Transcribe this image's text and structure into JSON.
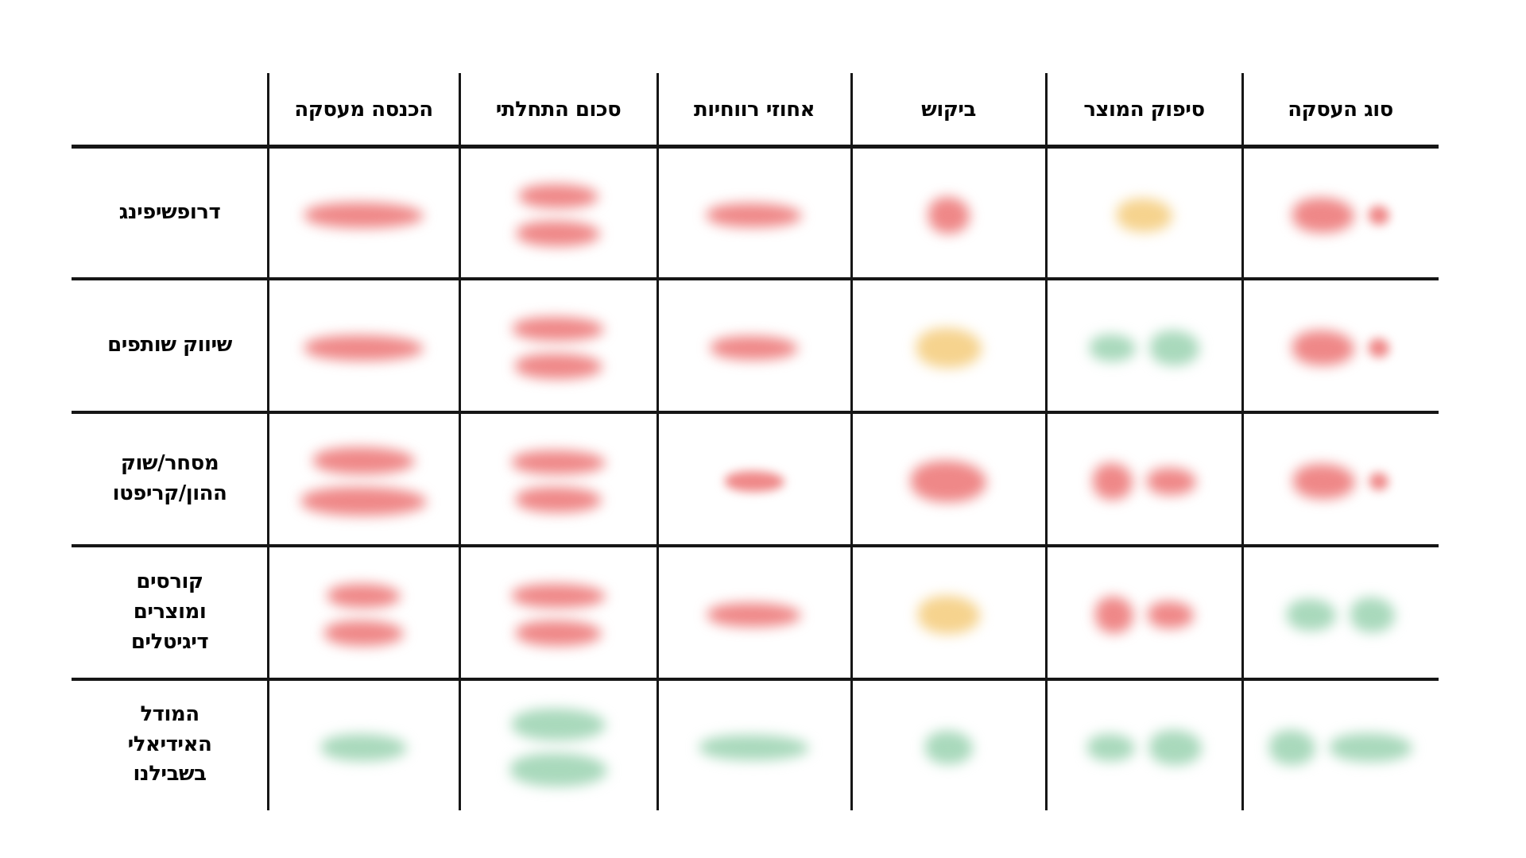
{
  "table": {
    "columns": [
      {
        "key": "income",
        "label": "הכנסה מעסקה"
      },
      {
        "key": "initial",
        "label": "סכום התחלתי"
      },
      {
        "key": "profit",
        "label": "אחוזי רווחיות"
      },
      {
        "key": "demand",
        "label": "ביקוש"
      },
      {
        "key": "fulfillment",
        "label": "סיפוק המוצר"
      },
      {
        "key": "type",
        "label": "סוג העסקה"
      }
    ],
    "rows": [
      {
        "key": "dropshipping",
        "label": "דרופשיפינג",
        "cells": [
          {
            "color": "red",
            "redacted": true,
            "lines": [
              [
                [
                  150,
                  32
                ]
              ]
            ]
          },
          {
            "color": "red",
            "redacted": true,
            "lines": [
              [
                [
                  100,
                  30
                ]
              ],
              [
                [
                  105,
                  32
                ]
              ]
            ]
          },
          {
            "color": "red",
            "redacted": true,
            "lines": [
              [
                [
                  120,
                  30
                ]
              ]
            ]
          },
          {
            "color": "red",
            "redacted": true,
            "lines": [
              [
                [
                  52,
                  46
                ]
              ]
            ]
          },
          {
            "color": "yellow",
            "redacted": true,
            "lines": [
              [
                [
                  70,
                  42
                ]
              ]
            ]
          },
          {
            "color": "red",
            "redacted": true,
            "lines": [
              [
                [
                  78,
                  44
                ],
                [
                  26,
                  24
                ]
              ]
            ]
          }
        ]
      },
      {
        "key": "affiliate",
        "label": "שיווק שותפים",
        "cells": [
          {
            "color": "red",
            "redacted": true,
            "lines": [
              [
                [
                  150,
                  32
                ]
              ]
            ]
          },
          {
            "color": "red",
            "redacted": true,
            "lines": [
              [
                [
                  115,
                  30
                ]
              ],
              [
                [
                  110,
                  32
                ]
              ]
            ]
          },
          {
            "color": "red",
            "redacted": true,
            "lines": [
              [
                [
                  110,
                  30
                ]
              ]
            ]
          },
          {
            "color": "yellow",
            "redacted": true,
            "lines": [
              [
                [
                  82,
                  50
                ]
              ]
            ]
          },
          {
            "color": "green",
            "redacted": true,
            "lines": [
              [
                [
                  58,
                  34
                ],
                [
                  62,
                  44
                ]
              ]
            ]
          },
          {
            "color": "red",
            "redacted": true,
            "lines": [
              [
                [
                  78,
                  44
                ],
                [
                  26,
                  24
                ]
              ]
            ]
          }
        ]
      },
      {
        "key": "trading-crypto",
        "label": "מסחר/שוק\nההון/קריפטו",
        "cells": [
          {
            "color": "red",
            "redacted": true,
            "lines": [
              [
                [
                  128,
                  34
                ]
              ],
              [
                [
                  158,
                  36
                ]
              ]
            ]
          },
          {
            "color": "red",
            "redacted": true,
            "lines": [
              [
                [
                  118,
                  30
                ]
              ],
              [
                [
                  108,
                  32
                ]
              ]
            ]
          },
          {
            "color": "red",
            "redacted": true,
            "lines": [
              [
                [
                  75,
                  26
                ]
              ]
            ]
          },
          {
            "color": "red",
            "redacted": true,
            "lines": [
              [
                [
                  95,
                  52
                ]
              ]
            ]
          },
          {
            "color": "red",
            "redacted": true,
            "lines": [
              [
                [
                  50,
                  46
                ],
                [
                  62,
                  34
                ]
              ]
            ]
          },
          {
            "color": "red",
            "redacted": true,
            "lines": [
              [
                [
                  78,
                  44
                ],
                [
                  24,
                  22
                ]
              ]
            ]
          }
        ]
      },
      {
        "key": "digital-products",
        "label": "קורסים\nומוצרים\nדיגיטלים",
        "cells": [
          {
            "color": "red",
            "redacted": true,
            "lines": [
              [
                [
                  92,
                  30
                ]
              ],
              [
                [
                  100,
                  32
                ]
              ]
            ]
          },
          {
            "color": "red",
            "redacted": true,
            "lines": [
              [
                [
                  118,
                  30
                ]
              ],
              [
                [
                  108,
                  32
                ]
              ]
            ]
          },
          {
            "color": "red",
            "redacted": true,
            "lines": [
              [
                [
                  118,
                  30
                ]
              ]
            ]
          },
          {
            "color": "yellow",
            "redacted": true,
            "lines": [
              [
                [
                  78,
                  48
                ]
              ]
            ]
          },
          {
            "color": "red",
            "redacted": true,
            "lines": [
              [
                [
                  48,
                  46
                ],
                [
                  58,
                  34
                ]
              ]
            ]
          },
          {
            "color": "green",
            "redacted": true,
            "lines": [
              [
                [
                  62,
                  40
                ],
                [
                  56,
                  44
                ]
              ]
            ]
          }
        ]
      },
      {
        "key": "ideal-model",
        "label": "המודל\nהאידיאלי\nבשבילנו",
        "cells": [
          {
            "color": "green",
            "redacted": true,
            "lines": [
              [
                [
                  108,
                  34
                ]
              ]
            ]
          },
          {
            "color": "green",
            "redacted": true,
            "lines": [
              [
                [
                  118,
                  40
                ]
              ],
              [
                [
                  122,
                  42
                ]
              ]
            ]
          },
          {
            "color": "green",
            "redacted": true,
            "lines": [
              [
                [
                  138,
                  32
                ]
              ]
            ]
          },
          {
            "color": "green",
            "redacted": true,
            "lines": [
              [
                [
                  60,
                  42
                ]
              ]
            ]
          },
          {
            "color": "green",
            "redacted": true,
            "lines": [
              [
                [
                  60,
                  34
                ],
                [
                  66,
                  44
                ]
              ]
            ]
          },
          {
            "color": "green",
            "redacted": true,
            "lines": [
              [
                [
                  58,
                  44
                ],
                [
                  104,
                  36
                ]
              ]
            ]
          }
        ]
      }
    ]
  },
  "colors": {
    "red": "#ef8888",
    "yellow": "#f6d38e",
    "green": "#a9d9bc",
    "grid_line": "#161616",
    "text": "#050505",
    "background": "#ffffff"
  }
}
